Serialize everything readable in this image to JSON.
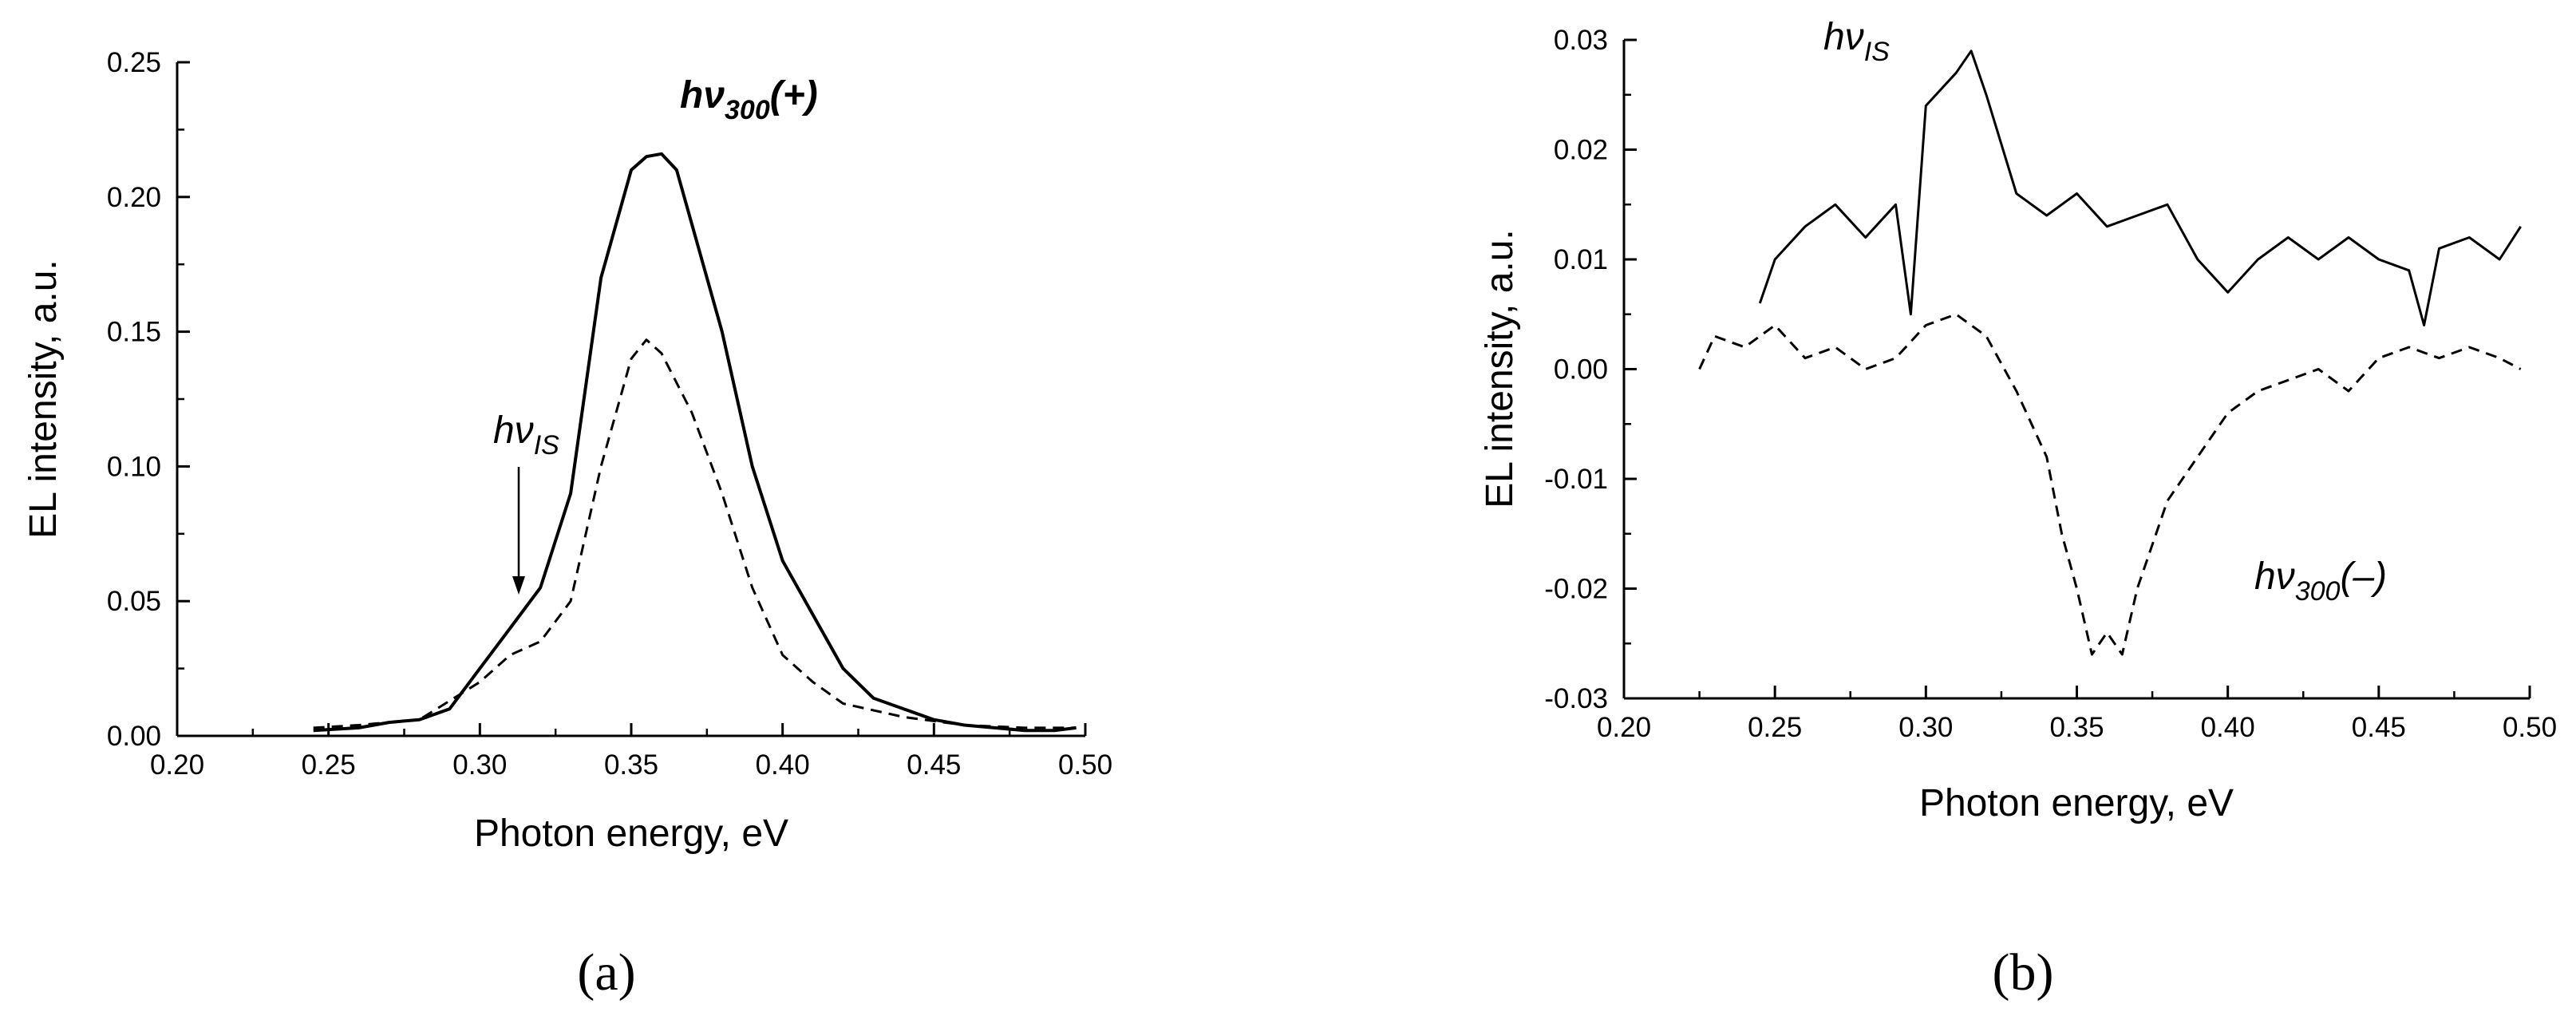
{
  "chart_data": [
    {
      "panel": "a",
      "type": "line",
      "xlabel": "Photon energy, eV",
      "ylabel": "EL intensity, a.u.",
      "xlim": [
        0.2,
        0.5
      ],
      "ylim": [
        0.0,
        0.25
      ],
      "x_ticks": [
        "0.20",
        "0.25",
        "0.30",
        "0.35",
        "0.40",
        "0.45",
        "0.50"
      ],
      "y_ticks": [
        "0.00",
        "0.05",
        "0.10",
        "0.15",
        "0.20",
        "0.25"
      ],
      "grid": false,
      "series": [
        {
          "style": "solid",
          "x": [
            0.245,
            0.26,
            0.27,
            0.28,
            0.29,
            0.3,
            0.31,
            0.32,
            0.33,
            0.34,
            0.35,
            0.355,
            0.36,
            0.365,
            0.37,
            0.38,
            0.39,
            0.4,
            0.41,
            0.42,
            0.43,
            0.44,
            0.45,
            0.46,
            0.47,
            0.48,
            0.49,
            0.497
          ],
          "y": [
            0.002,
            0.003,
            0.005,
            0.006,
            0.01,
            0.025,
            0.04,
            0.055,
            0.09,
            0.17,
            0.21,
            0.215,
            0.216,
            0.21,
            0.19,
            0.15,
            0.1,
            0.065,
            0.045,
            0.025,
            0.014,
            0.01,
            0.006,
            0.004,
            0.003,
            0.002,
            0.002,
            0.003
          ]
        },
        {
          "style": "dashed",
          "x": [
            0.245,
            0.26,
            0.28,
            0.3,
            0.31,
            0.32,
            0.33,
            0.34,
            0.35,
            0.355,
            0.36,
            0.37,
            0.38,
            0.39,
            0.4,
            0.41,
            0.42,
            0.44,
            0.46,
            0.48,
            0.497
          ],
          "y": [
            0.003,
            0.004,
            0.006,
            0.02,
            0.03,
            0.035,
            0.05,
            0.1,
            0.14,
            0.147,
            0.142,
            0.12,
            0.09,
            0.055,
            0.03,
            0.02,
            0.012,
            0.007,
            0.004,
            0.003,
            0.003
          ]
        }
      ],
      "annotations": [
        {
          "base": "hν",
          "sub": "300",
          "suffix": "(+)",
          "bold": true
        },
        {
          "base": "hν",
          "sub": "IS",
          "suffix": "",
          "bold": false,
          "arrow_to_x": 0.312,
          "arrow_to_y": 0.052
        }
      ],
      "panel_label": "(a)"
    },
    {
      "panel": "b",
      "type": "line",
      "xlabel": "Photon energy, eV",
      "ylabel": "EL intensity, a.u.",
      "xlim": [
        0.2,
        0.5
      ],
      "ylim": [
        -0.03,
        0.03
      ],
      "x_ticks": [
        "0.20",
        "0.25",
        "0.30",
        "0.35",
        "0.40",
        "0.45",
        "0.50"
      ],
      "y_ticks": [
        "-0.03",
        "-0.02",
        "-0.01",
        "0.00",
        "0.01",
        "0.02",
        "0.03"
      ],
      "grid": false,
      "series": [
        {
          "style": "solid",
          "x": [
            0.245,
            0.25,
            0.26,
            0.27,
            0.28,
            0.29,
            0.295,
            0.3,
            0.31,
            0.315,
            0.32,
            0.33,
            0.34,
            0.35,
            0.36,
            0.37,
            0.38,
            0.39,
            0.4,
            0.41,
            0.42,
            0.43,
            0.44,
            0.45,
            0.46,
            0.465,
            0.47,
            0.48,
            0.49,
            0.497
          ],
          "y": [
            0.006,
            0.01,
            0.013,
            0.015,
            0.012,
            0.015,
            0.005,
            0.024,
            0.027,
            0.029,
            0.025,
            0.016,
            0.014,
            0.016,
            0.013,
            0.014,
            0.015,
            0.01,
            0.007,
            0.01,
            0.012,
            0.01,
            0.012,
            0.01,
            0.009,
            0.004,
            0.011,
            0.012,
            0.01,
            0.013
          ]
        },
        {
          "style": "dashed",
          "x": [
            0.225,
            0.23,
            0.24,
            0.25,
            0.26,
            0.27,
            0.28,
            0.29,
            0.3,
            0.31,
            0.32,
            0.33,
            0.34,
            0.345,
            0.35,
            0.355,
            0.36,
            0.365,
            0.37,
            0.38,
            0.39,
            0.4,
            0.41,
            0.42,
            0.43,
            0.44,
            0.45,
            0.46,
            0.47,
            0.48,
            0.49,
            0.497
          ],
          "y": [
            0.0,
            0.003,
            0.002,
            0.004,
            0.001,
            0.002,
            0.0,
            0.001,
            0.004,
            0.005,
            0.003,
            -0.002,
            -0.008,
            -0.015,
            -0.02,
            -0.026,
            -0.024,
            -0.026,
            -0.02,
            -0.012,
            -0.008,
            -0.004,
            -0.002,
            -0.001,
            0.0,
            -0.002,
            0.001,
            0.002,
            0.001,
            0.002,
            0.001,
            0.0
          ]
        }
      ],
      "annotations": [
        {
          "base": "hν",
          "sub": "IS",
          "suffix": "",
          "bold": false
        },
        {
          "base": "hν",
          "sub": "300",
          "suffix": "(–)",
          "bold": false
        }
      ],
      "panel_label": "(b)"
    }
  ]
}
